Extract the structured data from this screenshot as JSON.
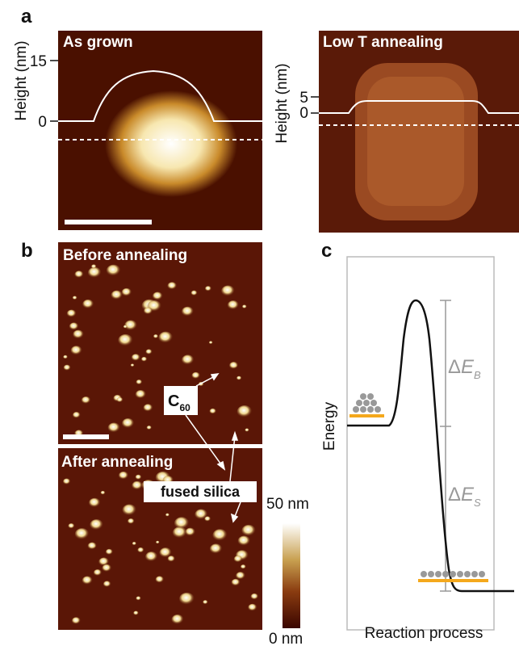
{
  "panel_a": {
    "letter": "a",
    "left": {
      "label": "As grown",
      "y_axis_label": "Height (nm)",
      "ticks": [
        15,
        0
      ]
    },
    "right": {
      "label": "Low T annealing",
      "y_axis_label": "Height (nm)",
      "ticks": [
        5,
        0
      ]
    }
  },
  "panel_b": {
    "letter": "b",
    "top_label": "Before annealing",
    "bottom_label": "After annealing",
    "c60": {
      "base": "C",
      "subscript": "60"
    },
    "fused_silica": "fused silica",
    "colorbar": {
      "max_label": "50 nm",
      "min_label": "0 nm"
    }
  },
  "panel_c": {
    "letter": "c",
    "y_axis_label": "Energy",
    "x_axis_label": "Reaction process",
    "barrier": {
      "delta": "Δ",
      "symbol": "E",
      "subscript": "B"
    },
    "surface": {
      "delta": "Δ",
      "symbol": "E",
      "subscript": "S"
    }
  }
}
